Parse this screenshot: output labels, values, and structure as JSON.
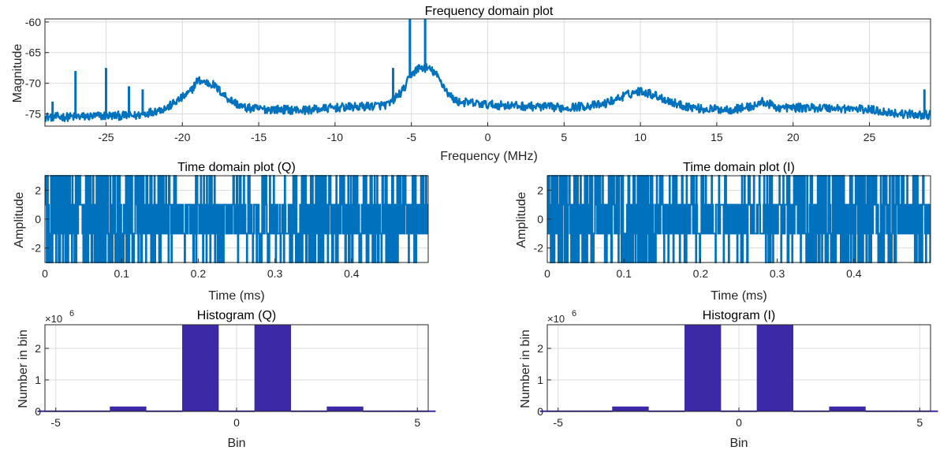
{
  "colors": {
    "line": "#0072BD",
    "bar": "#3B29A6",
    "grid": "#dcdcdc",
    "axis": "#262626",
    "background": "#ffffff"
  },
  "chart_data": [
    {
      "id": "freq",
      "type": "line",
      "title": "Frequency domain plot",
      "xlabel": "Frequency (MHz)",
      "ylabel": "Magnitude",
      "xlim": [
        -29,
        29
      ],
      "ylim": [
        -77,
        -59.5
      ],
      "xticks": [
        -25,
        -20,
        -15,
        -10,
        -5,
        0,
        5,
        10,
        15,
        20,
        25
      ],
      "yticks": [
        -75,
        -70,
        -65,
        -60
      ],
      "grid": true,
      "envelope": {
        "x": [
          -29,
          -27,
          -25,
          -23,
          -21,
          -19.5,
          -19,
          -18,
          -17,
          -16,
          -15,
          -12,
          -10,
          -8,
          -6.5,
          -5.5,
          -5,
          -4.5,
          -4,
          -3.5,
          -3,
          -2.5,
          -2,
          0,
          5,
          7.5,
          9,
          10,
          11,
          12.5,
          14,
          16,
          17.5,
          18,
          19,
          22,
          25,
          27,
          29
        ],
        "y": [
          -75.5,
          -75.5,
          -75.3,
          -75.3,
          -74,
          -71.5,
          -69.5,
          -70.2,
          -72.5,
          -74,
          -74.2,
          -74.4,
          -74,
          -73.8,
          -73.5,
          -71,
          -68.5,
          -67.5,
          -67.5,
          -68.2,
          -70,
          -72,
          -73,
          -73.5,
          -74,
          -73.5,
          -72,
          -71.2,
          -72,
          -73.5,
          -74.2,
          -74.3,
          -73.7,
          -73,
          -74,
          -74,
          -74.3,
          -75,
          -75.2
        ]
      },
      "spikes": [
        {
          "x": -28.5,
          "y": -73
        },
        {
          "x": -27,
          "y": -68
        },
        {
          "x": -25,
          "y": -67.5
        },
        {
          "x": -23.5,
          "y": -70.5
        },
        {
          "x": -22.6,
          "y": -71
        },
        {
          "x": -6.2,
          "y": -67.5
        },
        {
          "x": -5.1,
          "y": -59.5
        },
        {
          "x": -4.1,
          "y": -59.5
        },
        {
          "x": 28.6,
          "y": -71
        }
      ]
    },
    {
      "id": "timeQ",
      "type": "line",
      "title": "Time domain plot (Q)",
      "xlabel": "Time (ms)",
      "ylabel": "Amplitude",
      "xlim": [
        0,
        0.5
      ],
      "ylim": [
        -3,
        3
      ],
      "xticks": [
        0,
        0.1,
        0.2,
        0.3,
        0.4
      ],
      "yticks": [
        -2,
        0,
        2
      ],
      "grid": true,
      "levels": [
        -3,
        -1,
        1,
        3
      ]
    },
    {
      "id": "timeI",
      "type": "line",
      "title": "Time domain plot (I)",
      "xlabel": "Time (ms)",
      "ylabel": "Amplitude",
      "xlim": [
        0,
        0.5
      ],
      "ylim": [
        -3,
        3
      ],
      "xticks": [
        0,
        0.1,
        0.2,
        0.3,
        0.4
      ],
      "yticks": [
        -2,
        0,
        2
      ],
      "grid": true,
      "levels": [
        -3,
        -1,
        1,
        3
      ]
    },
    {
      "id": "histQ",
      "type": "bar",
      "title": "Histogram (Q)",
      "xlabel": "Bin",
      "ylabel": "Number in bin",
      "exponent_label": "×10",
      "exponent": "6",
      "xlim": [
        -5.3,
        5.3
      ],
      "ylim": [
        0,
        2.75
      ],
      "xticks": [
        -5,
        0,
        5
      ],
      "yticks": [
        0,
        1,
        2
      ],
      "grid": true,
      "categories": [
        -5,
        -4,
        -3,
        -2,
        -1,
        0,
        1,
        2,
        3,
        4,
        5
      ],
      "values": [
        0,
        0,
        0.15,
        0,
        2.75,
        0,
        2.75,
        0,
        0.15,
        0,
        0
      ]
    },
    {
      "id": "histI",
      "type": "bar",
      "title": "Histogram (I)",
      "xlabel": "Bin",
      "ylabel": "Number in bin",
      "exponent_label": "×10",
      "exponent": "6",
      "xlim": [
        -5.3,
        5.3
      ],
      "ylim": [
        0,
        2.75
      ],
      "xticks": [
        -5,
        0,
        5
      ],
      "yticks": [
        0,
        1,
        2
      ],
      "grid": true,
      "categories": [
        -5,
        -4,
        -3,
        -2,
        -1,
        0,
        1,
        2,
        3,
        4,
        5
      ],
      "values": [
        0,
        0,
        0.15,
        0,
        2.75,
        0,
        2.75,
        0,
        0.15,
        0,
        0
      ]
    }
  ]
}
